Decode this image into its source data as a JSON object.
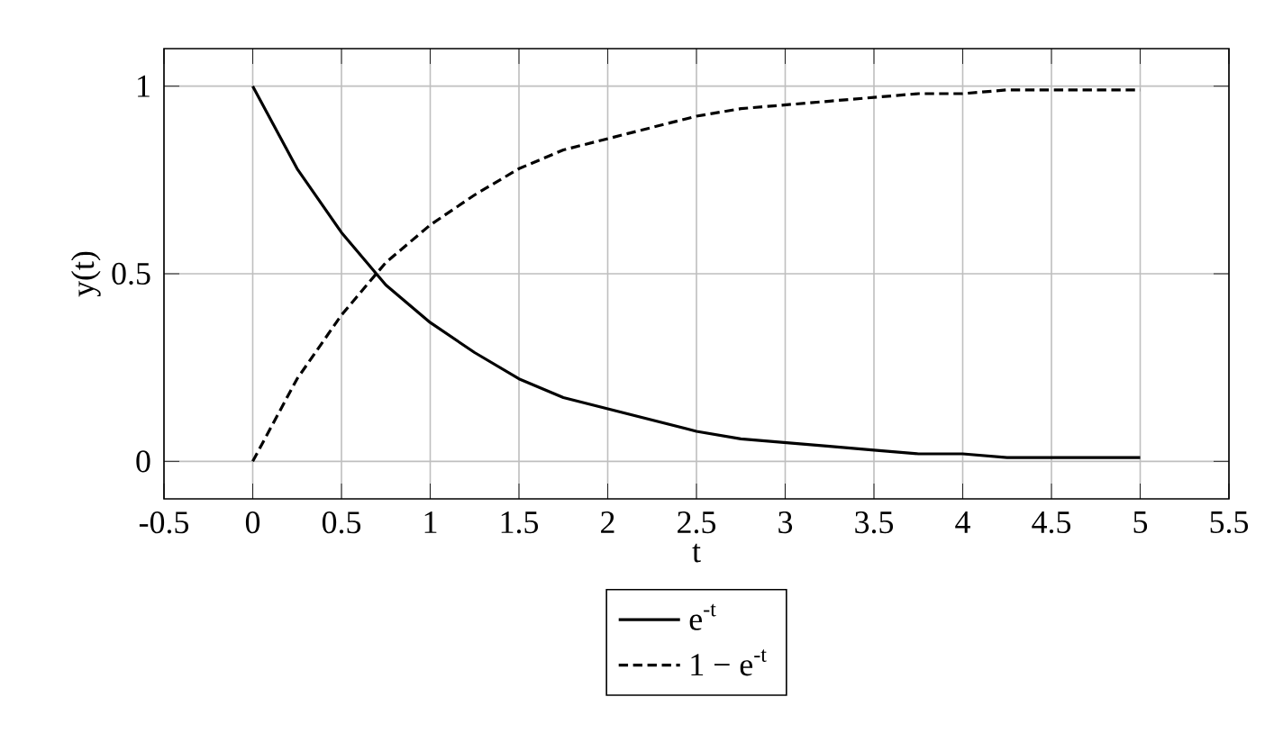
{
  "chart_data": {
    "type": "line",
    "xlabel": "t",
    "ylabel": "y(t)",
    "x": [
      0,
      0.25,
      0.5,
      0.75,
      1,
      1.25,
      1.5,
      1.75,
      2,
      2.25,
      2.5,
      2.75,
      3,
      3.25,
      3.5,
      3.75,
      4,
      4.25,
      4.5,
      4.75,
      5
    ],
    "series": [
      {
        "name": "e$^{-t}$",
        "color": "#000000",
        "line_style": "solid",
        "values": [
          1,
          0.78,
          0.61,
          0.47,
          0.37,
          0.29,
          0.22,
          0.17,
          0.14,
          0.11,
          0.08,
          0.06,
          0.05,
          0.04,
          0.03,
          0.02,
          0.02,
          0.01,
          0.01,
          0.01,
          0.01
        ]
      },
      {
        "name": "1 − e$^{-t}$",
        "color": "#000000",
        "line_style": "dashed",
        "values": [
          0,
          0.22,
          0.39,
          0.53,
          0.63,
          0.71,
          0.78,
          0.83,
          0.86,
          0.89,
          0.92,
          0.94,
          0.95,
          0.96,
          0.97,
          0.98,
          0.98,
          0.99,
          0.99,
          0.99,
          0.99
        ]
      }
    ],
    "xlim": [
      -0.5,
      5.5
    ],
    "ylim": [
      -0.1,
      1.1
    ],
    "xticks": [
      -0.5,
      0,
      0.5,
      1,
      1.5,
      2,
      2.5,
      3,
      3.5,
      4,
      4.5,
      5,
      5.5
    ],
    "yticks": [
      0,
      0.5,
      1
    ],
    "grid": true,
    "legend": "bottom",
    "marker": "none"
  }
}
